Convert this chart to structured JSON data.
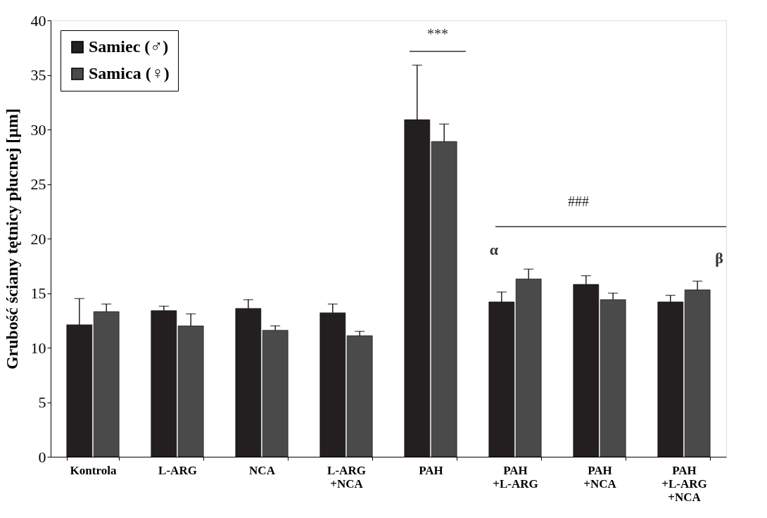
{
  "chart_data": {
    "type": "bar",
    "ylabel": "Grubość ściany tętnicy płucnej [µm]",
    "categories": [
      "Kontrola",
      "L-ARG",
      "NCA",
      "L-ARG\n+NCA",
      "PAH",
      "PAH\n+L-ARG",
      "PAH\n+NCA",
      "PAH\n+L-ARG\n+NCA"
    ],
    "series": [
      {
        "name": "Samiec (♂)",
        "color": "#231f20",
        "values": [
          12.1,
          13.4,
          13.6,
          13.2,
          30.9,
          14.2,
          15.8,
          14.2
        ],
        "errors": [
          [
            12.1,
            14.5
          ],
          [
            13.4,
            13.8
          ],
          [
            13.6,
            14.4
          ],
          [
            13.2,
            14.0
          ],
          [
            30.9,
            35.9
          ],
          [
            14.2,
            15.1
          ],
          [
            15.8,
            16.6
          ],
          [
            14.2,
            14.8
          ]
        ]
      },
      {
        "name": "Samica (♀)",
        "color": "#4a4a4a",
        "values": [
          13.3,
          12.0,
          11.6,
          11.1,
          28.9,
          16.3,
          14.4,
          15.3
        ],
        "errors": [
          [
            13.3,
            14.0
          ],
          [
            12.0,
            13.1
          ],
          [
            11.6,
            12.0
          ],
          [
            11.1,
            11.5
          ],
          [
            28.9,
            30.5
          ],
          [
            16.3,
            17.2
          ],
          [
            14.4,
            15.0
          ],
          [
            15.3,
            16.1
          ]
        ]
      }
    ],
    "ylim": [
      0,
      40
    ],
    "yticks": [
      0,
      5,
      10,
      15,
      20,
      25,
      30,
      35,
      40
    ],
    "grid": false,
    "legend": "top left",
    "annotations": [
      "***",
      "###",
      "α",
      "β"
    ]
  }
}
